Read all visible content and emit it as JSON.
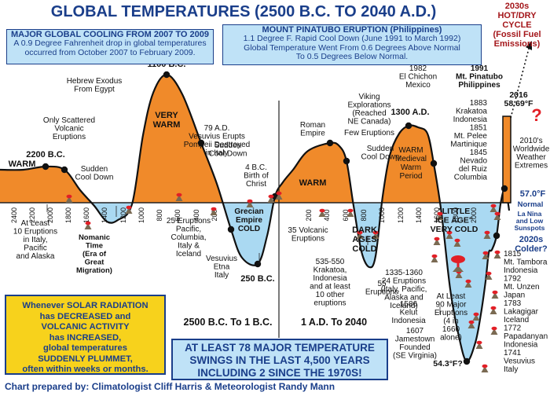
{
  "title": "GLOBAL TEMPERATURES (2500 B.C. TO 2040 A.D.)",
  "credit": "Chart prepared by: Climatologist Cliff Harris & Meteorologist Randy Mann",
  "cooling_box": {
    "title": "MAJOR GLOBAL COOLING FROM 2007 TO 2009",
    "lines": [
      "A 0.9 Degree Fahrenheit drop in global temperatures",
      "occurred from October 2007 to February 2009."
    ]
  },
  "pinatubo_box": {
    "title": "MOUNT PINATUBO ERUPTION (Philippines)",
    "lines": [
      "1.1 Degree F. Rapid Cool Down (June 1991 to March 1992)",
      "Global Temperature Went From 0.6 Degrees Above Normal",
      "To 0.5 Degrees Below Normal."
    ]
  },
  "solar_box": {
    "lines": [
      "Whenever SOLAR RADIATION",
      "has DECREASED and",
      "VOLCANIC ACTIVITY",
      "has INCREASED,",
      "global temperatures",
      "SUDDENLY PLUMMET,",
      "often within weeks or months."
    ]
  },
  "swings_box": {
    "lines": [
      "AT LEAST 78 MAJOR TEMPERATURE",
      "SWINGS IN THE LAST 4,500 YEARS",
      "INCLUDING 2 SINCE THE 1970S!"
    ]
  },
  "fossil_note": {
    "lines": [
      "2030s",
      "HOT/DRY",
      "CYCLE",
      "(Fossil Fuel",
      "Emissions)"
    ]
  },
  "colors": {
    "warm": "#f08a2a",
    "cold": "#aad9f2",
    "navy": "#1a3e8a",
    "curve": "#111111",
    "volcano_red": "#e21f26"
  },
  "chart_data": {
    "type": "line",
    "title": "GLOBAL TEMPERATURES (2500 B.C. TO 2040 A.D.)",
    "xlabel": "",
    "ylabel": "",
    "x_ticks_bc": [
      "2400",
      "2200",
      "2000",
      "1800",
      "1600",
      "1400",
      "1200",
      "1000",
      "800",
      "600",
      "400",
      "200"
    ],
    "x_ticks_ad": [
      "200",
      "400",
      "600",
      "800",
      "1000",
      "1200",
      "1400",
      "1600",
      "1800",
      "2000"
    ],
    "era_labels": [
      "2500 B.C. To 1 B.C.",
      "1 A.D. To 2040"
    ],
    "zone_labels": [
      {
        "text": "WARM",
        "color": "warm"
      },
      {
        "text": "VERY\nWARM",
        "color": "warm"
      },
      {
        "text": "WARM",
        "color": "warm"
      },
      {
        "text": "WARM\nMedieval\nWarm\nPeriod",
        "color": "warm"
      },
      {
        "text": "Nomanic\nTime\n(Era of\nGreat\nMigration)",
        "color": "cold"
      },
      {
        "text": "Grecian\nEmpire\nCOLD",
        "color": "cold"
      },
      {
        "text": "DARK\nAGES\nCOLD",
        "color": "cold"
      },
      {
        "text": "\"LITTLE\nICE AGE\"\nVERY COLD",
        "color": "cold"
      }
    ],
    "peak_labels": [
      {
        "text": "2200 B.C."
      },
      {
        "text": "1100 B.C."
      },
      {
        "text": "250 B.C."
      },
      {
        "text": "1300 A.D."
      },
      {
        "text": "2016\n58.69°F"
      },
      {
        "text": "54.3°F?"
      }
    ],
    "annotations": [
      {
        "text": "Sudden\nCool Down"
      },
      {
        "text": "Hebrew Exodus\nFrom Egypt"
      },
      {
        "text": "Only Scattered\nVolcanic\nEruptions"
      },
      {
        "text": "Sudden\nCool Down"
      },
      {
        "text": "79 A.D.\nVesuvius Erupts\nPompeii Destroyed\nin Italy"
      },
      {
        "text": "4 B.C.\nBirth of\nChrist"
      },
      {
        "text": "Roman\nEmpire"
      },
      {
        "text": "Viking\nExplorations\n(Reached\nNE Canada)"
      },
      {
        "text": "Few Eruptions"
      },
      {
        "text": "Sudden\nCool Down"
      },
      {
        "text": "At Least\n10 Eruptions\nin Italy,\nPacific\nand Alaska"
      },
      {
        "text": "25 Eruptions\nPacific,\nColumbia,\nItaly &\nIceland"
      },
      {
        "text": "Vesuvius\nEtna\nItaly"
      },
      {
        "text": "35 Volcanic\nEruptions"
      },
      {
        "text": "535-550\nKrakatoa,\nIndonesia\nand at least\n10 other\neruptions"
      },
      {
        "text": "55\nEruptions"
      },
      {
        "text": "1335-1360\n24 Eruptions\n(Italy, Pacific,\nAlaska and\nIceland)"
      },
      {
        "text": "At Least\n90 Major\nEruptions\n(4 in\n1660\nalone)"
      },
      {
        "text": "1586\nKelut\nIndonesia"
      },
      {
        "text": "1607\nJamestown\nFounded\n(SE Virginia)"
      },
      {
        "text": "1982\nEl Chichon\nMexico"
      },
      {
        "text": "1991\nMt. Pinatubo\nPhilippines"
      },
      {
        "text": "1883\nKrakatoa\nIndonesia\n1851\nMt. Pelee\nMartinique\n1845\nNevado\ndel Ruiz\nColumbia"
      },
      {
        "text": "2010's\nWorldwide\nWeather\nExtremes"
      },
      {
        "text": "57.0°F"
      },
      {
        "text": "Normal"
      },
      {
        "text": "La Nina\nand Low\nSunspots"
      },
      {
        "text": "2020s\nColder?"
      },
      {
        "text": "1815\nMt. Tambora\nIndonesia\n1792\nMt. Unzen\nJapan\n1783\nLakagigar\nIceland\n1772\nPapadanyan\nIndonesia\n1741\nVesuvius\nItaly"
      },
      {
        "text": "?"
      }
    ]
  }
}
